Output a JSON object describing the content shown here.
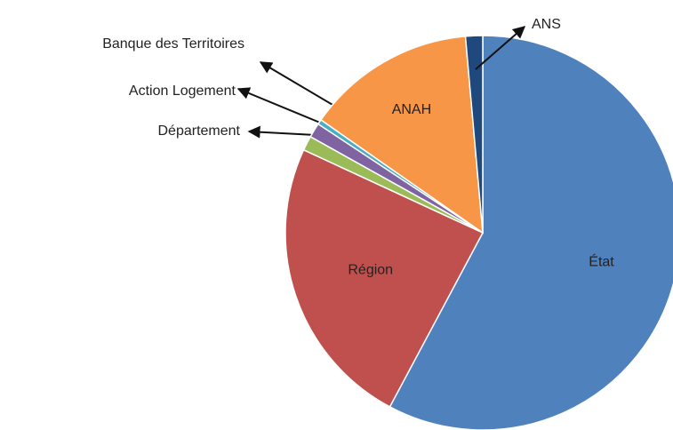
{
  "chart_data": {
    "type": "pie",
    "categories": [
      "État",
      "Région",
      "Département",
      "Action Logement",
      "Banque des Territoires",
      "ANAH",
      "ANS"
    ],
    "values": [
      57.8,
      24.1,
      1.2,
      1.2,
      0.4,
      13.9,
      1.4
    ],
    "colors": [
      "#4f81bd",
      "#c0504d",
      "#9bbb59",
      "#8064a2",
      "#4bacc6",
      "#f79646",
      "#1f497d"
    ]
  }
}
